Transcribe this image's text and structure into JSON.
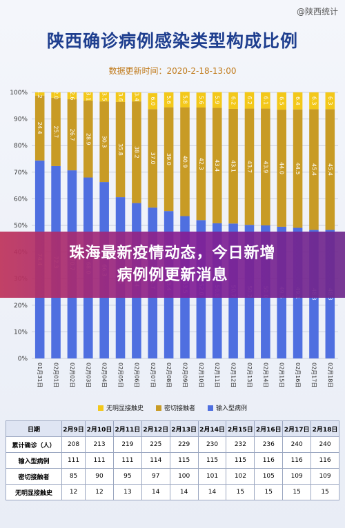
{
  "watermark": "@陕西统计",
  "title": "陕西确诊病例感染类型构成比例",
  "subtitle": "数据更新时间：2020-2-18-13:00",
  "banner": {
    "line1": "珠海最新疫情动态，今日新增",
    "line2": "病例例更新消息"
  },
  "colors": {
    "unknown": "#f3c81a",
    "close": "#c89b25",
    "imported": "#4f6fe0",
    "title": "#1f3f8f"
  },
  "legend": [
    {
      "label": "无明显接触史",
      "color": "#f3c81a"
    },
    {
      "label": "密切接触者",
      "color": "#c89b25"
    },
    {
      "label": "输入型病例",
      "color": "#4f6fe0"
    }
  ],
  "chart_data": {
    "type": "bar",
    "stacked": true,
    "title": "陕西确诊病例感染类型构成比例",
    "ylim": [
      0,
      100
    ],
    "yticks": [
      "0%",
      "10%",
      "20%",
      "30%",
      "40%",
      "50%",
      "60%",
      "70%",
      "80%",
      "90%",
      "100%"
    ],
    "categories": [
      "01月31日",
      "02月01日",
      "02月02日",
      "02月03日",
      "02月04日",
      "02月05日",
      "02月06日",
      "02月07日",
      "02月08日",
      "02月09日",
      "02月10日",
      "02月11日",
      "02月12日",
      "02月13日",
      "02月14日",
      "02月15日",
      "02月16日",
      "02月17日",
      "02月18日"
    ],
    "series": [
      {
        "name": "输入型病例",
        "values": [
          74.4,
          72.3,
          70.7,
          68.0,
          66.3,
          60.6,
          58.4,
          56.7,
          55.4,
          53.5,
          52.0,
          50.8,
          50.7,
          50.2,
          50.0,
          49.5,
          49.1,
          48.3,
          48.3
        ]
      },
      {
        "name": "密切接触者",
        "values": [
          24.4,
          25.7,
          26.7,
          28.9,
          30.3,
          35.8,
          38.2,
          37.0,
          39.0,
          40.9,
          42.3,
          43.4,
          43.1,
          43.7,
          43.9,
          44.0,
          44.5,
          45.4,
          45.4
        ]
      },
      {
        "name": "无明显接触史",
        "values": [
          1.2,
          2.0,
          2.6,
          3.1,
          3.5,
          3.6,
          3.4,
          6.0,
          5.6,
          5.8,
          5.6,
          5.9,
          6.2,
          6.2,
          6.1,
          6.5,
          6.4,
          6.3,
          6.3
        ]
      }
    ]
  },
  "table": {
    "header": [
      "日期",
      "2月9日",
      "2月10日",
      "2月11日",
      "2月12日",
      "2月13日",
      "2月14日",
      "2月15日",
      "2月16日",
      "2月17日",
      "2月18日"
    ],
    "rows": [
      [
        "累计确诊（人）",
        "208",
        "213",
        "219",
        "225",
        "229",
        "230",
        "232",
        "236",
        "240",
        "240"
      ],
      [
        "输入型病例",
        "111",
        "111",
        "111",
        "114",
        "115",
        "115",
        "115",
        "116",
        "116",
        "116"
      ],
      [
        "密切接触者",
        "85",
        "90",
        "95",
        "97",
        "100",
        "101",
        "102",
        "105",
        "109",
        "109"
      ],
      [
        "无明显接触史",
        "12",
        "12",
        "13",
        "14",
        "14",
        "14",
        "15",
        "15",
        "15",
        "15"
      ]
    ]
  }
}
